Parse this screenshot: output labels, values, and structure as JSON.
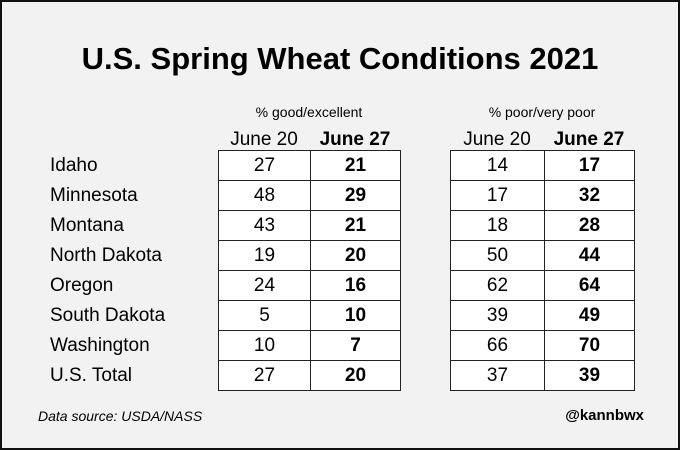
{
  "chart_data": {
    "type": "table",
    "title": "U.S. Spring Wheat Conditions 2021",
    "groups": [
      {
        "name": "% good/excellent",
        "columns": [
          "June 20",
          "June 27"
        ],
        "values": [
          [
            27,
            21
          ],
          [
            48,
            29
          ],
          [
            43,
            21
          ],
          [
            19,
            20
          ],
          [
            24,
            16
          ],
          [
            5,
            10
          ],
          [
            10,
            7
          ],
          [
            27,
            20
          ]
        ]
      },
      {
        "name": "% poor/very poor",
        "columns": [
          "June 20",
          "June 27"
        ],
        "values": [
          [
            14,
            17
          ],
          [
            17,
            32
          ],
          [
            18,
            28
          ],
          [
            50,
            44
          ],
          [
            62,
            64
          ],
          [
            39,
            49
          ],
          [
            66,
            70
          ],
          [
            37,
            39
          ]
        ]
      }
    ],
    "rows": [
      "Idaho",
      "Minnesota",
      "Montana",
      "North Dakota",
      "Oregon",
      "South Dakota",
      "Washington",
      "U.S. Total"
    ]
  },
  "footer": {
    "source": "Data source: USDA/NASS",
    "handle": "@kannbwx"
  }
}
